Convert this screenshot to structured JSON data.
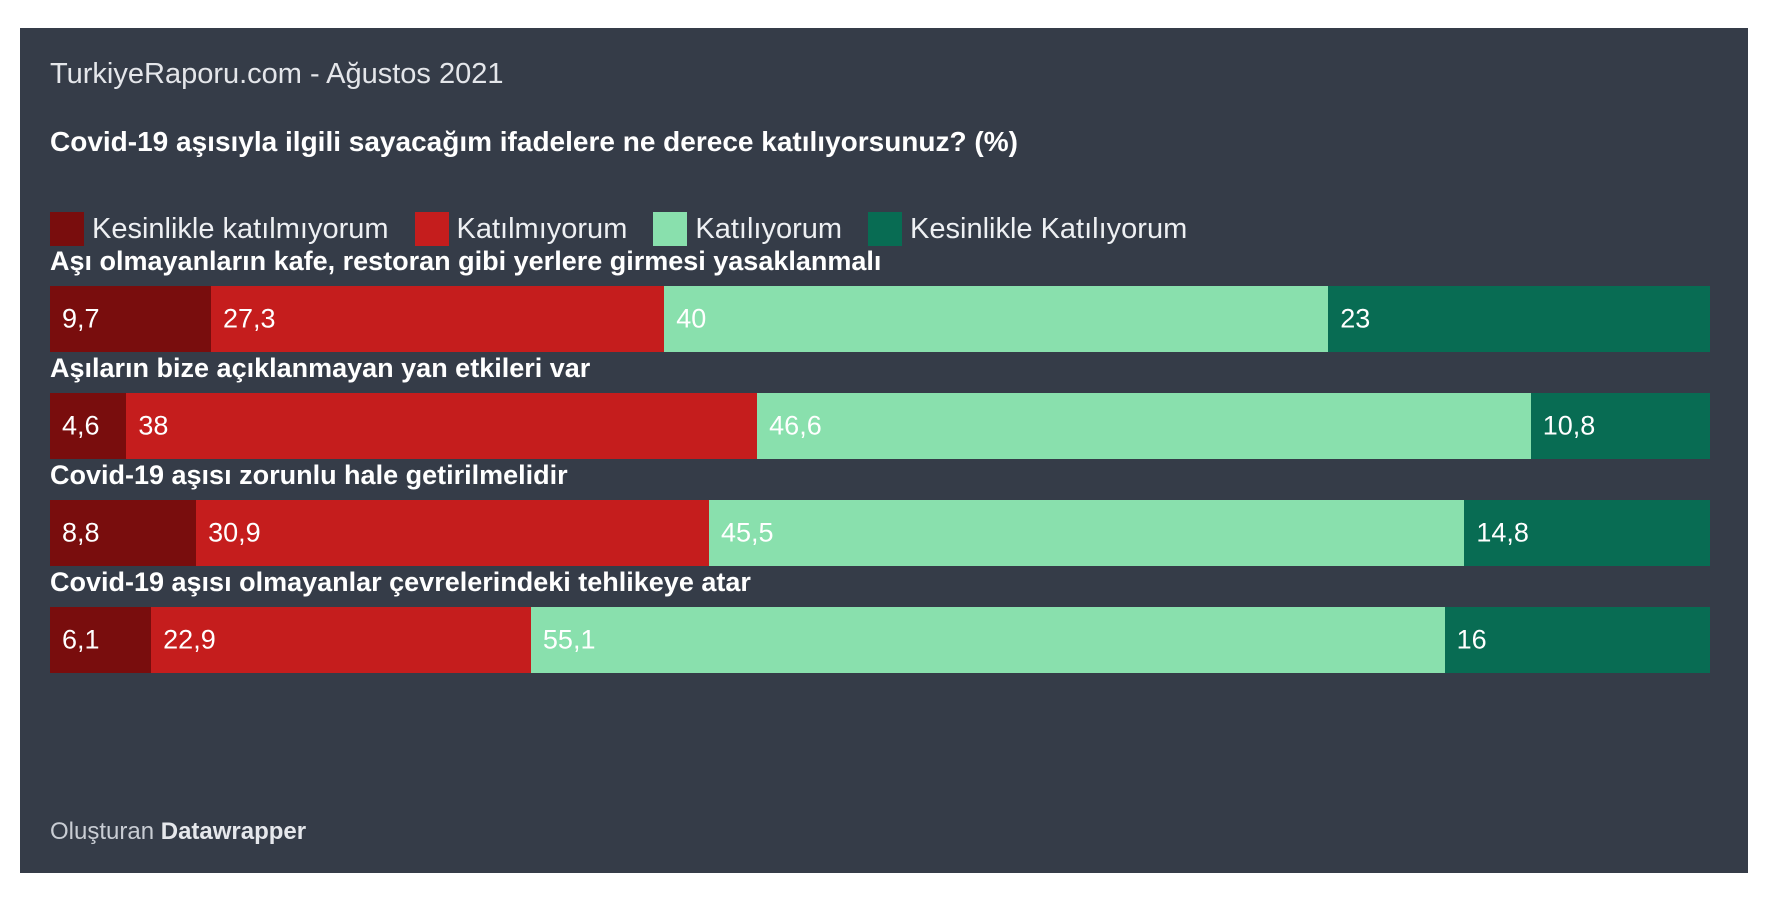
{
  "source_line": "TurkiyeRaporu.com - Ağustos 2021",
  "footer": {
    "prefix": "Oluşturan",
    "brand": "Datawrapper"
  },
  "colors": {
    "background": "#353c48",
    "kesinlikle_katilmiyorum": "#790d0d",
    "katilmiyorum": "#c51d1d",
    "katiliyorum": "#89e0ad",
    "kesinlikle_katiliyorum": "#086c53"
  },
  "chart_data": {
    "type": "bar",
    "orientation": "horizontal",
    "stacked": true,
    "title": "Covid-19 aşısıyla ilgili sayacağım ifadelere ne derece katılıyorsunuz? (%)",
    "legend_placement": "top",
    "categories": [
      "Aşı olmayanların kafe, restoran gibi yerlere girmesi yasaklanmalı",
      "Aşıların bize açıklanmayan yan etkileri var",
      "Covid-19 aşısı zorunlu hale getirilmelidir",
      "Covid-19 aşısı olmayanlar çevrelerindeki tehlikeye atar"
    ],
    "series": [
      {
        "name": "Kesinlikle katılmıyorum",
        "color": "#790d0d",
        "values": [
          9.7,
          4.6,
          8.8,
          6.1
        ],
        "labels": [
          "9,7",
          "4,6",
          "8,8",
          "6,1"
        ]
      },
      {
        "name": "Katılmıyorum",
        "color": "#c51d1d",
        "values": [
          27.3,
          38,
          30.9,
          22.9
        ],
        "labels": [
          "27,3",
          "38",
          "30,9",
          "22,9"
        ]
      },
      {
        "name": "Katılıyorum",
        "color": "#89e0ad",
        "values": [
          40,
          46.6,
          45.5,
          55.1
        ],
        "labels": [
          "40",
          "46,6",
          "45,5",
          "55,1"
        ]
      },
      {
        "name": "Kesinlikle Katılıyorum",
        "color": "#086c53",
        "values": [
          23,
          10.8,
          14.8,
          16
        ],
        "labels": [
          "23",
          "10,8",
          "14,8",
          "16"
        ]
      }
    ]
  }
}
